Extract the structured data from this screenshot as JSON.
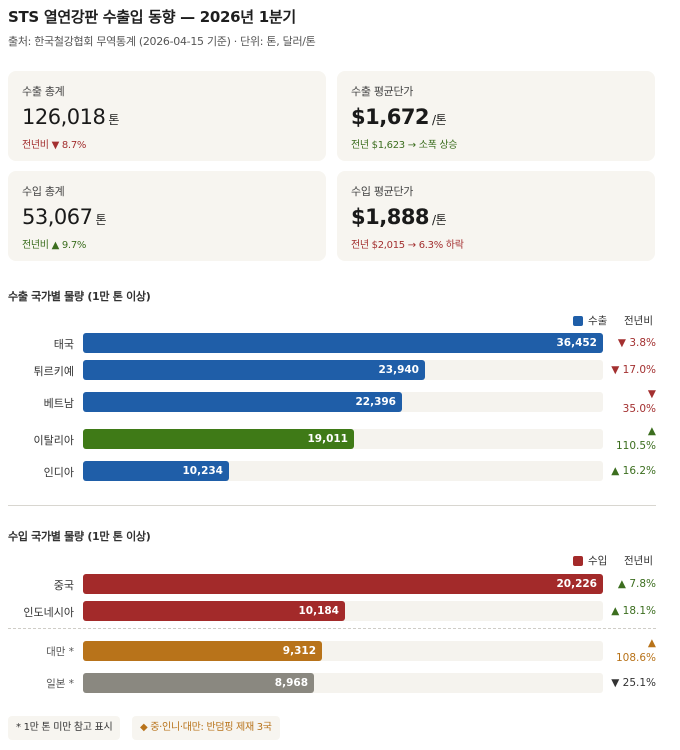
{
  "header": {
    "title": "STS 열연강판 수출입 동향 — 2026년 1분기",
    "subtitle": "출처: 한국철강협회 무역통계 (2026-04-15 기준) · 단위: 톤, 달러/톤"
  },
  "kpis": {
    "export_total": {
      "label": "수출 총계",
      "value": "126,018",
      "unit": "톤",
      "note_prefix": "전년비",
      "note_arrow": "▼",
      "note_value": "8.7%"
    },
    "export_price": {
      "label": "수출 평균단가",
      "value": "$1,672",
      "unit": "/톤",
      "note": "전년 $1,623 → 소폭 상승"
    },
    "import_total": {
      "label": "수입 총계",
      "value": "53,067",
      "unit": "톤",
      "note_prefix": "전년비",
      "note_arrow": "▲",
      "note_value": "9.7%"
    },
    "import_price": {
      "label": "수입 평균단가",
      "value": "$1,888",
      "unit": "/톤",
      "note": "전년 $2,015 → 6.3% 하락"
    }
  },
  "colors": {
    "export": "#1f5ea8",
    "export_highlight": "#3f7a17",
    "import": "#a32a2a",
    "import_taiwan": "#b8731a",
    "import_japan": "#8a8880",
    "down": "#a33030",
    "up": "#3c6e1f"
  },
  "legend_labels": {
    "export": "수출",
    "import": "수입",
    "yoy": "전년비"
  },
  "chart_data": [
    {
      "type": "bar",
      "orientation": "horizontal",
      "title": "수출 국가별 물량 (1만 톤 이상)",
      "series_name": "수출",
      "xlim": [
        0,
        36452
      ],
      "categories": [
        "태국",
        "튀르키예",
        "베트남",
        "이탈리아",
        "인디아"
      ],
      "values": [
        36452,
        23940,
        22396,
        19011,
        10234
      ],
      "labels": [
        "36,452",
        "23,940",
        "22,396",
        "19,011",
        "10,234"
      ],
      "yoy": [
        {
          "arrow": "▼",
          "text": "3.8%",
          "dir": "down"
        },
        {
          "arrow": "▼",
          "text": "17.0%",
          "dir": "down"
        },
        {
          "arrow": "▼",
          "text": "35.0%",
          "dir": "down"
        },
        {
          "arrow": "▲",
          "text": "110.5%",
          "dir": "up"
        },
        {
          "arrow": "▲",
          "text": "16.2%",
          "dir": "up"
        }
      ]
    },
    {
      "type": "bar",
      "orientation": "horizontal",
      "title": "수입 국가별 물량 (1만 톤 이상)",
      "series_name": "수입",
      "xlim": [
        0,
        20226
      ],
      "categories": [
        "중국",
        "인도네시아",
        "대만 *",
        "일본 *"
      ],
      "values": [
        20226,
        10184,
        9312,
        8968
      ],
      "labels": [
        "20,226",
        "10,184",
        "9,312",
        "8,968"
      ],
      "yoy": [
        {
          "arrow": "▲",
          "text": "7.8%",
          "dir": "up"
        },
        {
          "arrow": "▲",
          "text": "18.1%",
          "dir": "up"
        },
        {
          "arrow": "▲",
          "text": "108.6%",
          "dir": "orange"
        },
        {
          "arrow": "▼",
          "text": "25.1%",
          "dir": "dark"
        }
      ]
    }
  ],
  "footnotes": {
    "reference": "* 1만 톤 미만 참고 표시",
    "antidumping": "◆ 중·인니·대만: 반덤핑 제재 3국"
  }
}
